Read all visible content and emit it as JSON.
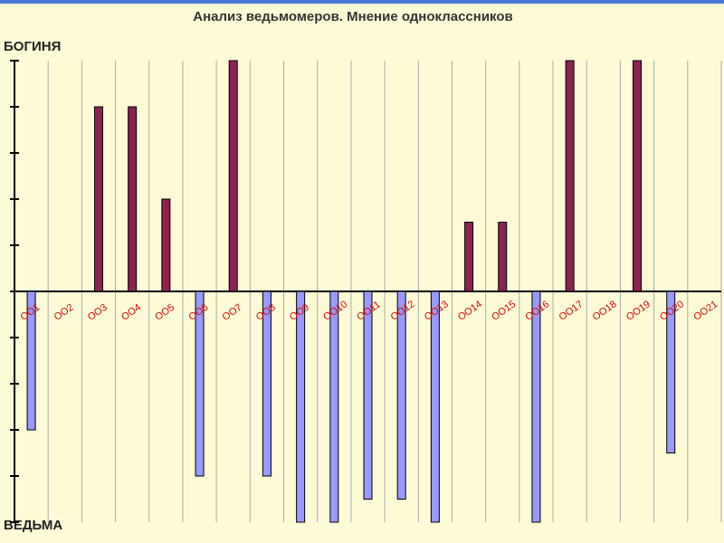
{
  "chart_data": {
    "type": "bar",
    "title": "Анализ ведьмомеров. Мнение одноклассников",
    "y_top_label": "БОГИНЯ",
    "y_bottom_label": "ВЕДЬМА",
    "categories": [
      "ОО1",
      "ОО2",
      "ОО3",
      "ОО4",
      "ОО5",
      "ОО6",
      "ОО7",
      "ОО8",
      "ОО9",
      "ОО10",
      "ОО11",
      "ОО12",
      "ОО13",
      "ОО14",
      "ОО15",
      "ОО16",
      "ОО17",
      "ОО18",
      "ОО19",
      "ОО20",
      "ОО21"
    ],
    "values": [
      -3,
      0,
      4,
      4,
      2,
      -4,
      5,
      -4,
      -5,
      -5,
      -4.5,
      -4.5,
      -5,
      1.5,
      1.5,
      -5,
      5,
      0,
      5,
      -3.5,
      0
    ],
    "color": "#8b2252",
    "negative_color": "#9999ff",
    "ylim": [
      -5,
      5
    ],
    "yticks": [
      -5,
      -4,
      -3,
      -2,
      -1,
      0,
      1,
      2,
      3,
      4,
      5
    ],
    "grid": true
  }
}
